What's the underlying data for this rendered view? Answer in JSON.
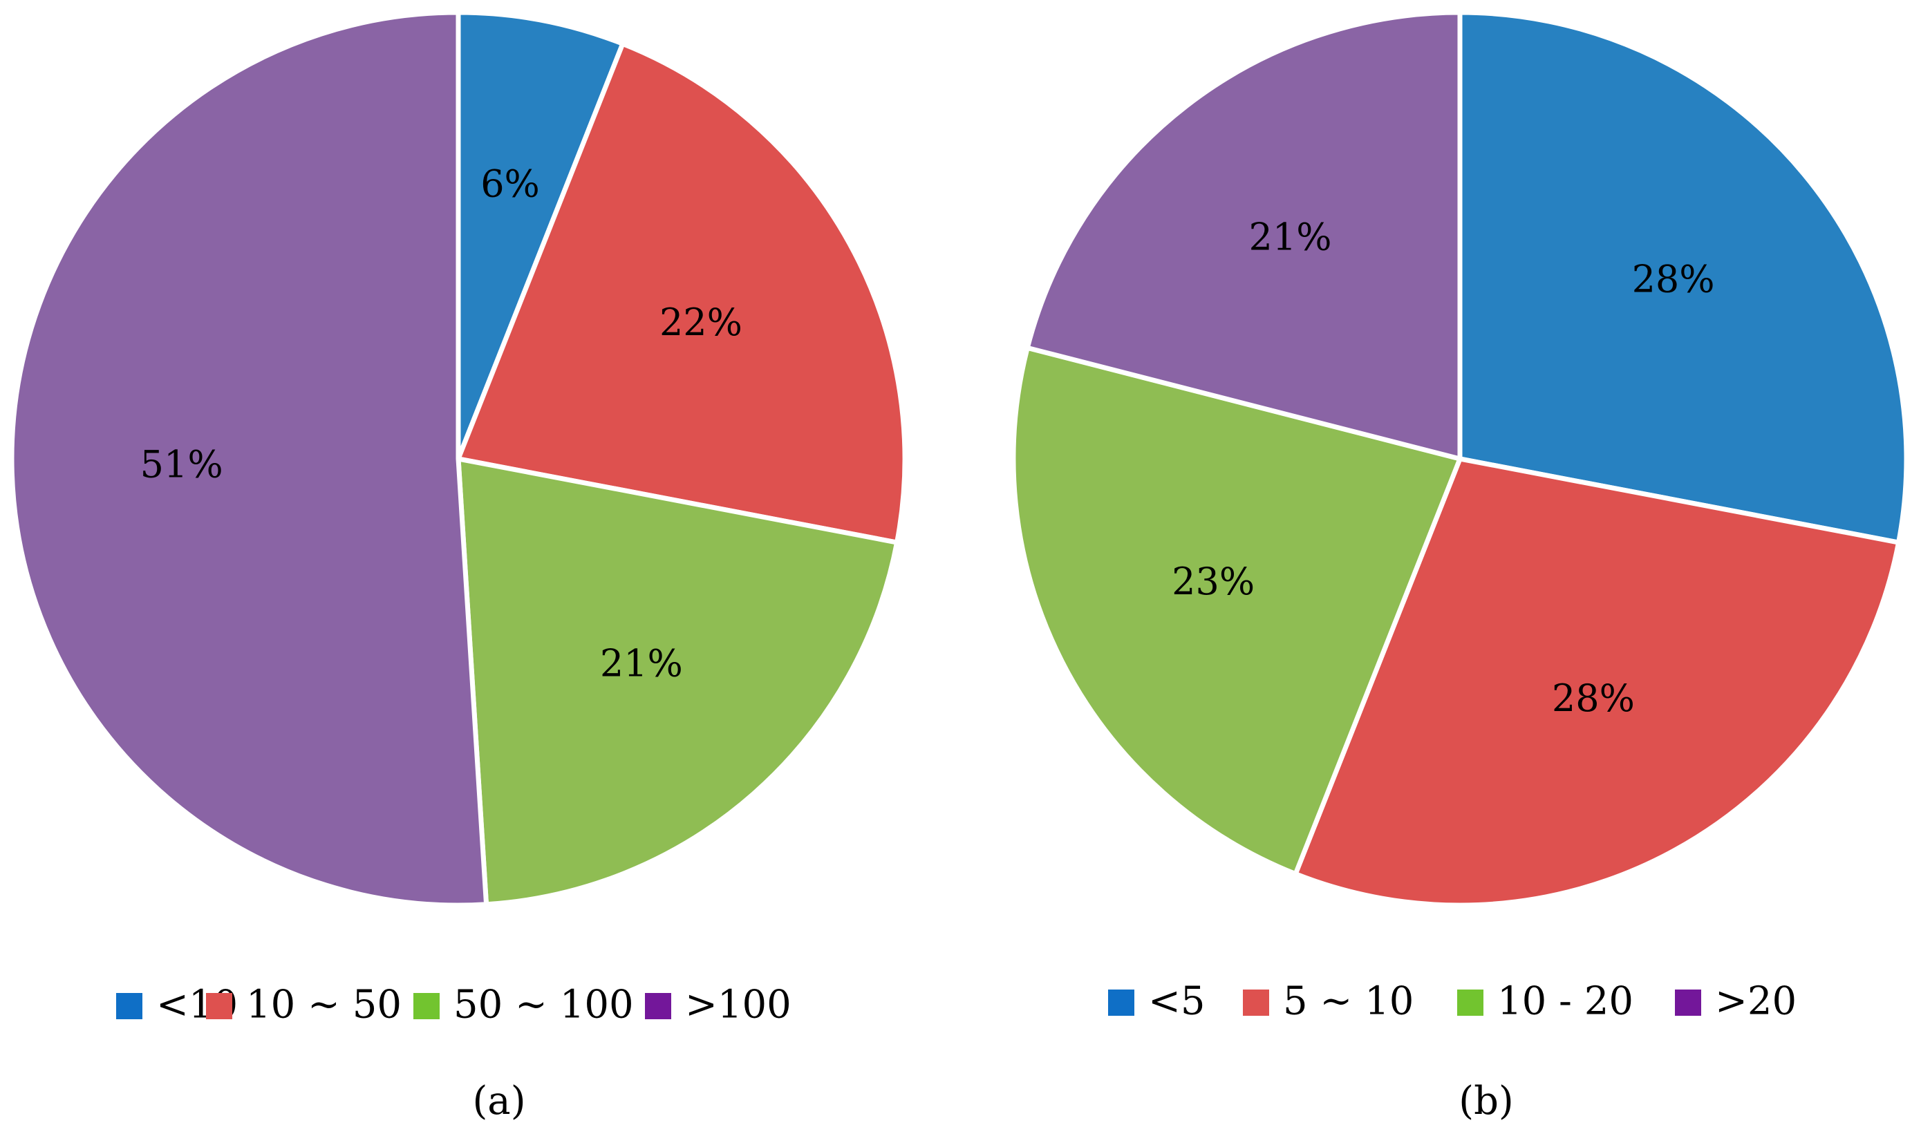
{
  "chart_data": [
    {
      "type": "pie",
      "caption": "(a)",
      "categories": [
        "<10",
        "10 ~ 50",
        "50 ~ 100",
        ">100"
      ],
      "values": [
        6,
        22,
        21,
        51
      ],
      "labels": [
        "6%",
        "22%",
        "21%",
        "51%"
      ],
      "colors": [
        "#2781c1",
        "#de514f",
        "#8fbd53",
        "#8a64a5"
      ],
      "legend_swatch_colors": [
        "#0f6fc6",
        "#de514f",
        "#72c42f",
        "#73179a"
      ],
      "legend_placement": "bottom"
    },
    {
      "type": "pie",
      "caption": "(b)",
      "categories": [
        "<5",
        "5 ~ 10",
        "10 - 20",
        ">20"
      ],
      "values": [
        28,
        28,
        23,
        21
      ],
      "labels": [
        "28%",
        "28%",
        "23%",
        "21%"
      ],
      "colors": [
        "#2781c1",
        "#de514f",
        "#8fbd53",
        "#8a64a5"
      ],
      "legend_swatch_colors": [
        "#0f6fc6",
        "#de514f",
        "#72c42f",
        "#73179a"
      ],
      "legend_placement": "bottom"
    }
  ]
}
